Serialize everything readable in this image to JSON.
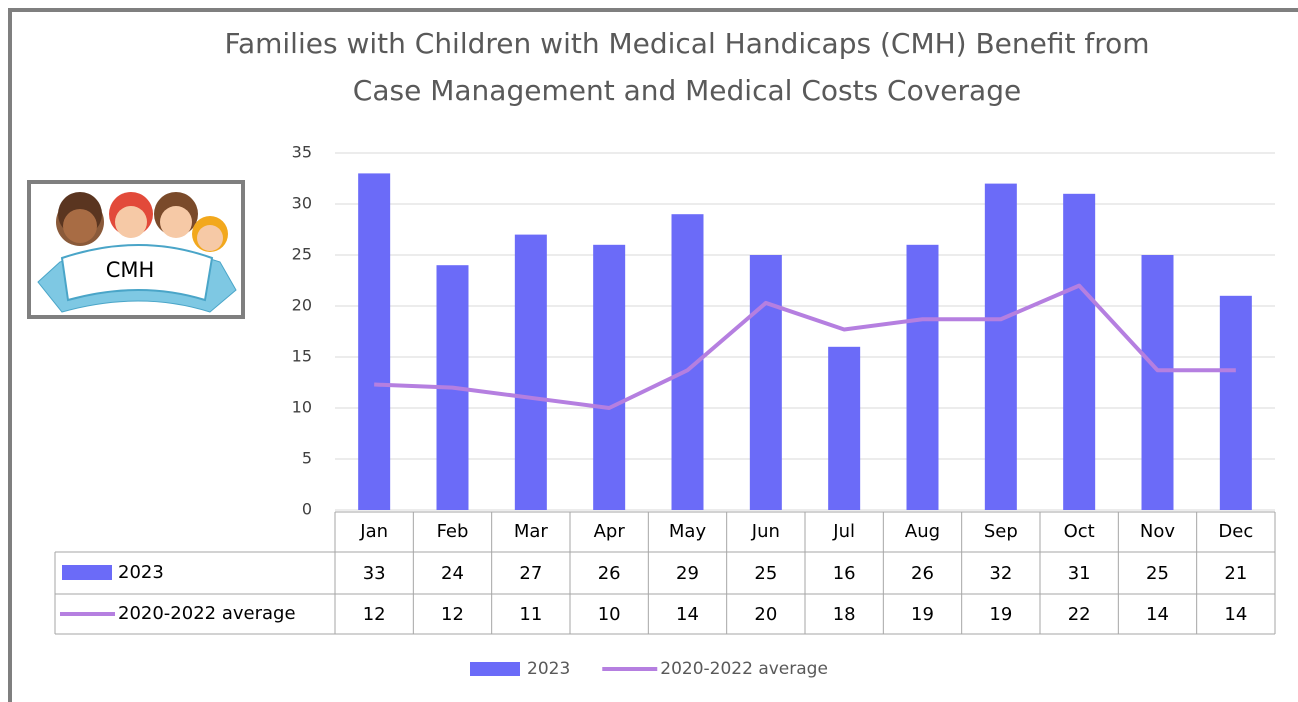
{
  "chart_data": {
    "type": "bar",
    "title": [
      "Families with Children with Medical Handicaps (CMH) Benefit from",
      "Case Management and Medical Costs Coverage"
    ],
    "image_label": "CMH",
    "categories": [
      "Jan",
      "Feb",
      "Mar",
      "Apr",
      "May",
      "Jun",
      "Jul",
      "Aug",
      "Sep",
      "Oct",
      "Nov",
      "Dec"
    ],
    "series": [
      {
        "name": "2023",
        "type": "bar",
        "color": "#6b6bf8",
        "values": [
          33,
          24,
          27,
          26,
          29,
          25,
          16,
          26,
          32,
          31,
          25,
          21
        ]
      },
      {
        "name": "2020-2022 average",
        "type": "line",
        "color": "#b57fe0",
        "values": [
          12.3,
          12,
          11,
          10,
          13.7,
          20.3,
          17.7,
          18.7,
          18.7,
          22,
          13.7,
          13.7
        ],
        "value_labels": [
          "12",
          "12",
          "11",
          "10",
          "14",
          "20",
          "18",
          "19",
          "19",
          "22",
          "14",
          "14"
        ]
      }
    ],
    "ylim": [
      0,
      35
    ],
    "yticks": [
      0,
      5,
      10,
      15,
      20,
      25,
      30,
      35
    ],
    "grid": true,
    "legend": "bottom",
    "data_table": true
  }
}
